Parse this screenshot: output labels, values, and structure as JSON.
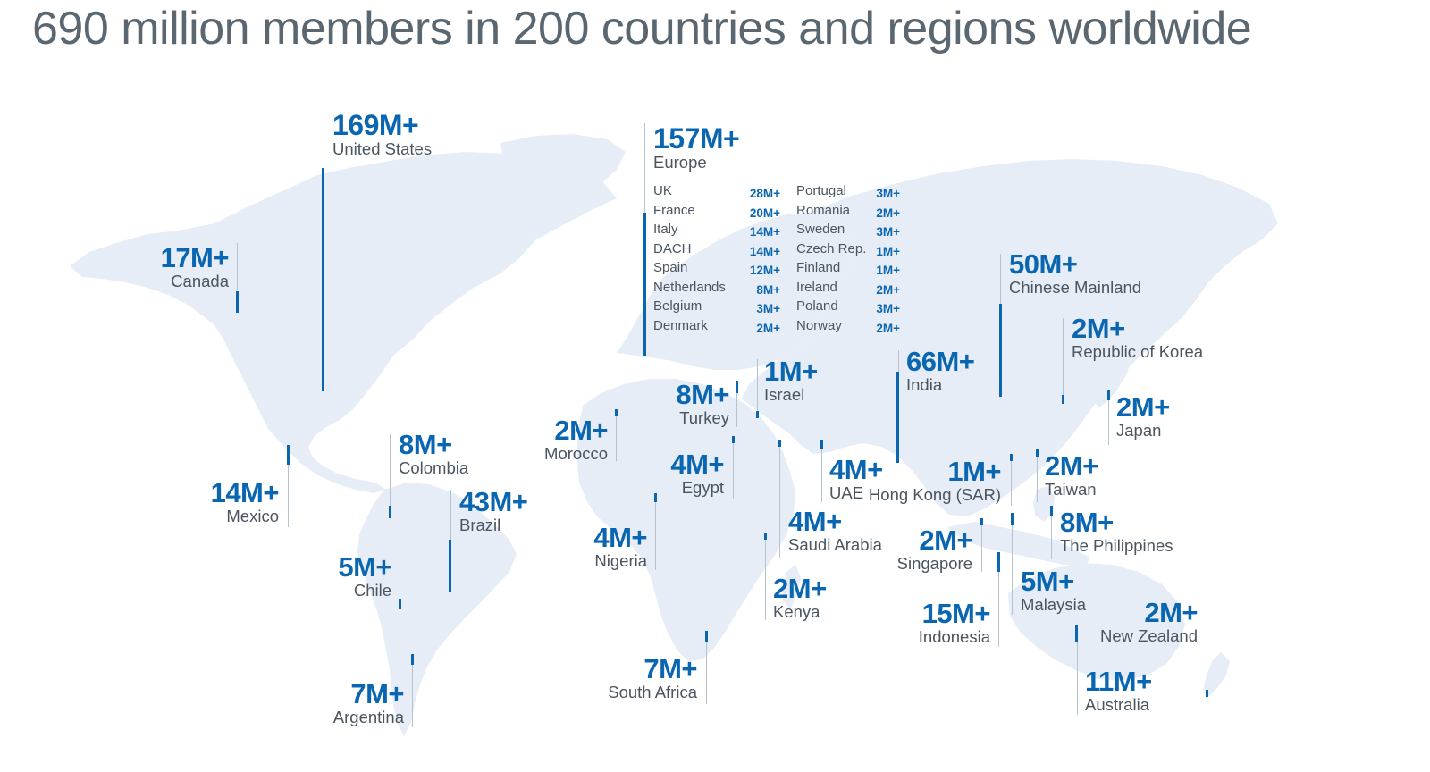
{
  "title": "690 million members in 200 countries and regions worldwide",
  "colors": {
    "accent": "#0a66b0",
    "land": "#e6edf6",
    "title_text": "#5b6770",
    "label_text": "#4a5560"
  },
  "regions": {
    "united_states": {
      "value": "169M+",
      "name": "United States"
    },
    "canada": {
      "value": "17M+",
      "name": "Canada"
    },
    "mexico": {
      "value": "14M+",
      "name": "Mexico"
    },
    "colombia": {
      "value": "8M+",
      "name": "Colombia"
    },
    "brazil": {
      "value": "43M+",
      "name": "Brazil"
    },
    "chile": {
      "value": "5M+",
      "name": "Chile"
    },
    "argentina": {
      "value": "7M+",
      "name": "Argentina"
    },
    "europe": {
      "value": "157M+",
      "name": "Europe"
    },
    "morocco": {
      "value": "2M+",
      "name": "Morocco"
    },
    "turkey": {
      "value": "8M+",
      "name": "Turkey"
    },
    "israel": {
      "value": "1M+",
      "name": "Israel"
    },
    "egypt": {
      "value": "4M+",
      "name": "Egypt"
    },
    "nigeria": {
      "value": "4M+",
      "name": "Nigeria"
    },
    "saudi_arabia": {
      "value": "4M+",
      "name": "Saudi Arabia"
    },
    "uae": {
      "value": "4M+",
      "name": "UAE"
    },
    "kenya": {
      "value": "2M+",
      "name": "Kenya"
    },
    "south_africa": {
      "value": "7M+",
      "name": "South Africa"
    },
    "india": {
      "value": "66M+",
      "name": "India"
    },
    "chinese_mainland": {
      "value": "50M+",
      "name": "Chinese Mainland"
    },
    "korea": {
      "value": "2M+",
      "name": "Republic of Korea"
    },
    "japan": {
      "value": "2M+",
      "name": "Japan"
    },
    "hong_kong": {
      "value": "1M+",
      "name": "Hong Kong (SAR)"
    },
    "taiwan": {
      "value": "2M+",
      "name": "Taiwan"
    },
    "philippines": {
      "value": "8M+",
      "name": "The Philippines"
    },
    "singapore": {
      "value": "2M+",
      "name": "Singapore"
    },
    "malaysia": {
      "value": "5M+",
      "name": "Malaysia"
    },
    "indonesia": {
      "value": "15M+",
      "name": "Indonesia"
    },
    "new_zealand": {
      "value": "2M+",
      "name": "New Zealand"
    },
    "australia": {
      "value": "11M+",
      "name": "Australia"
    }
  },
  "europe_breakdown": [
    {
      "left_name": "UK",
      "left_value": "28M+",
      "right_name": "Portugal",
      "right_value": "3M+"
    },
    {
      "left_name": "France",
      "left_value": "20M+",
      "right_name": "Romania",
      "right_value": "2M+"
    },
    {
      "left_name": "Italy",
      "left_value": "14M+",
      "right_name": "Sweden",
      "right_value": "3M+"
    },
    {
      "left_name": "DACH",
      "left_value": "14M+",
      "right_name": "Czech Rep.",
      "right_value": "1M+"
    },
    {
      "left_name": "Spain",
      "left_value": "12M+",
      "right_name": "Finland",
      "right_value": "1M+"
    },
    {
      "left_name": "Netherlands",
      "left_value": "8M+",
      "right_name": "Ireland",
      "right_value": "2M+"
    },
    {
      "left_name": "Belgium",
      "left_value": "3M+",
      "right_name": "Poland",
      "right_value": "3M+"
    },
    {
      "left_name": "Denmark",
      "left_value": "2M+",
      "right_name": "Norway",
      "right_value": "2M+"
    }
  ]
}
